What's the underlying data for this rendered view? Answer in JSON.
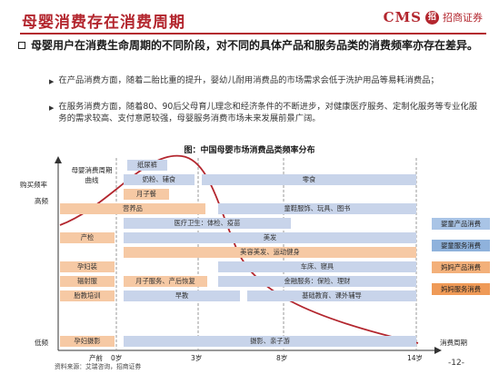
{
  "header": {
    "title": "母婴消费存在消费周期",
    "logo_text": "CMS",
    "logo_mark": "招",
    "logo_cn": "招商证券"
  },
  "bullet": "母婴用户在消费生命周期的不同阶段，对不同的具体产品和服务品类的消费频率亦存在差异。",
  "points": [
    "在产品消费方面，随着二胎比重的提升，婴幼儿耐用消费品的市场需求会低于洗护用品等易耗消费品；",
    "在服务消费方面，随着80、90后父母育儿理念和经济条件的不断进步，对健康医疗服务、定制化服务等专业化服务的需求较高、支付意愿较强，母婴服务消费市场未来发展前景广阔。"
  ],
  "figure_title": "图：中国母婴市场消费品类频率分布",
  "chart": {
    "ylabel": "购买频率",
    "y_high": "高频",
    "y_low": "低频",
    "xlabel": "消费周期",
    "curve_label": "母婴消费周期曲线",
    "x_ticks": [
      "产前",
      "0岁",
      "3岁",
      "8岁",
      "14岁"
    ],
    "bars": [
      {
        "label": "纸尿裤",
        "kind": "b"
      },
      {
        "label": "奶粉、辅食",
        "kind": "b"
      },
      {
        "label": "零食",
        "kind": "b"
      },
      {
        "label": "月子餐",
        "kind": "o"
      },
      {
        "label": "营养品",
        "kind": "o"
      },
      {
        "label": "童鞋服饰、玩具、图书",
        "kind": "b"
      },
      {
        "label": "医疗卫生：体检、疫苗",
        "kind": "b"
      },
      {
        "label": "产检",
        "kind": "o"
      },
      {
        "label": "美发",
        "kind": "b"
      },
      {
        "label": "美容美发、运动健身",
        "kind": "o"
      },
      {
        "label": "孕妇装",
        "kind": "o"
      },
      {
        "label": "车床、寝具",
        "kind": "b"
      },
      {
        "label": "辐射服",
        "kind": "o"
      },
      {
        "label": "月子服务、产后恢复",
        "kind": "o"
      },
      {
        "label": "金融服务：保险、理财",
        "kind": "b"
      },
      {
        "label": "胎教培训",
        "kind": "o"
      },
      {
        "label": "早教",
        "kind": "b"
      },
      {
        "label": "基础教育、课外辅导",
        "kind": "b"
      },
      {
        "label": "孕妇摄影",
        "kind": "o"
      },
      {
        "label": "摄影、亲子游",
        "kind": "b"
      }
    ],
    "legend": [
      {
        "label": "婴童产品消费",
        "color": "#a9c4e6"
      },
      {
        "label": "婴童服务消费",
        "color": "#8fb2dc"
      },
      {
        "label": "妈妈产品消费",
        "color": "#f3b07a"
      },
      {
        "label": "妈妈服务消费",
        "color": "#ef9a57"
      }
    ]
  },
  "source": "资料来源：艾瑞咨询，招商证券",
  "page": "-12-"
}
